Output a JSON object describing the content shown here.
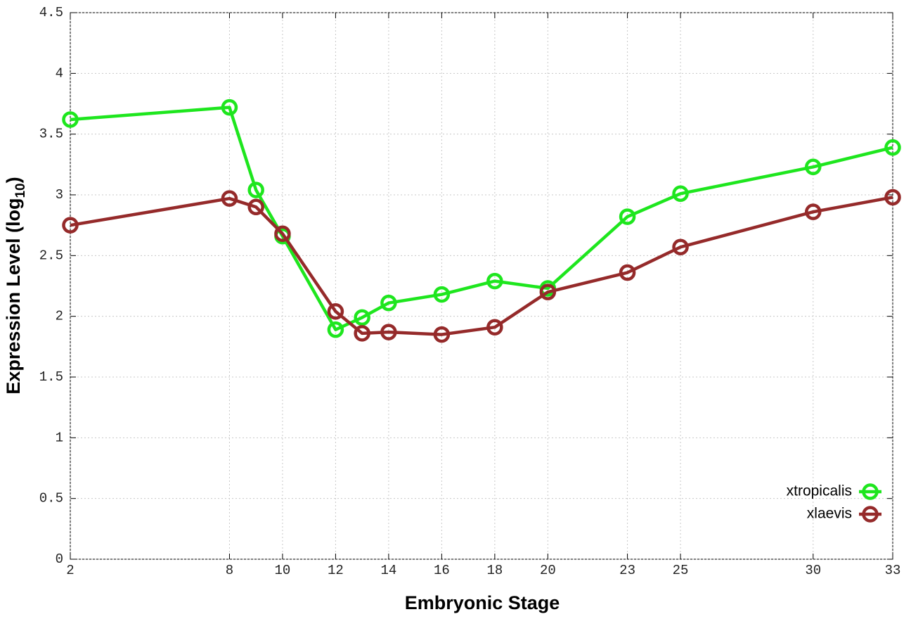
{
  "chart_data": {
    "type": "line",
    "xlabel": "Embryonic Stage",
    "ylabel": {
      "text": "Expression Level (log",
      "subscript": "10",
      "suffix": ")"
    },
    "x": [
      2,
      8,
      9,
      10,
      12,
      13,
      14,
      16,
      18,
      20,
      23,
      25,
      30,
      33
    ],
    "series": [
      {
        "name": "xtropicalis",
        "color": "#1ee61e",
        "values": [
          3.62,
          3.72,
          3.04,
          2.66,
          1.89,
          1.99,
          2.11,
          2.18,
          2.29,
          2.23,
          2.82,
          3.01,
          3.23,
          3.39
        ]
      },
      {
        "name": "xlaevis",
        "color": "#952a2a",
        "values": [
          2.75,
          2.97,
          2.9,
          2.68,
          2.04,
          1.86,
          1.87,
          1.85,
          1.91,
          2.2,
          2.36,
          2.57,
          2.86,
          2.98
        ]
      }
    ],
    "xlim": [
      2,
      33
    ],
    "xticks": [
      2,
      8,
      10,
      12,
      14,
      16,
      18,
      20,
      23,
      25,
      30,
      33
    ],
    "ylim": [
      0,
      4.5
    ],
    "yticks": [
      0,
      0.5,
      1,
      1.5,
      2,
      2.5,
      3,
      3.5,
      4,
      4.5
    ],
    "grid": true,
    "legend": "bottom-right"
  }
}
